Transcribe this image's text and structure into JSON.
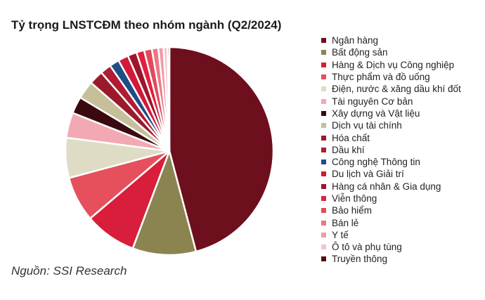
{
  "chart_data": {
    "type": "pie",
    "title": "Tỷ trọng LNSTCĐM theo nhóm ngành (Q2/2024)",
    "source": "Nguồn: SSI Research",
    "legend_position": "right",
    "series": [
      {
        "name": "Ngân hàng",
        "value": 45.6,
        "color": "#6e0f1e"
      },
      {
        "name": "Bất động sản",
        "value": 9.8,
        "color": "#8b8450"
      },
      {
        "name": "Hàng & Dịch vụ Công nghiệp",
        "value": 8.0,
        "color": "#d81e3a"
      },
      {
        "name": "Thực phẩm và đồ uống",
        "value": 7.0,
        "color": "#e6505d"
      },
      {
        "name": "Điện, nước & xăng dầu khí đốt",
        "value": 6.2,
        "color": "#dfdcc6"
      },
      {
        "name": "Tài nguyên Cơ bản",
        "value": 3.9,
        "color": "#f2a9b3"
      },
      {
        "name": "Xây dựng và Vật liệu",
        "value": 2.6,
        "color": "#3a0a10"
      },
      {
        "name": "Dịch vụ tài chính",
        "value": 2.8,
        "color": "#c5c09a"
      },
      {
        "name": "Hóa chất",
        "value": 2.2,
        "color": "#9a1a2c"
      },
      {
        "name": "Dầu khí",
        "value": 1.7,
        "color": "#b01c33"
      },
      {
        "name": "Công nghệ Thông tin",
        "value": 1.5,
        "color": "#1f4e86"
      },
      {
        "name": "Du lịch và Giải trí",
        "value": 1.6,
        "color": "#d2193a"
      },
      {
        "name": "Hàng cá nhân & Gia dụng",
        "value": 1.4,
        "color": "#a0142a"
      },
      {
        "name": "Viễn thông",
        "value": 1.2,
        "color": "#e0203f"
      },
      {
        "name": "Bảo hiểm",
        "value": 1.2,
        "color": "#e24a5a"
      },
      {
        "name": "Bán lẻ",
        "value": 1.0,
        "color": "#ec7785"
      },
      {
        "name": "Y tế",
        "value": 0.8,
        "color": "#f29aa5"
      },
      {
        "name": "Ô tô và phụ tùng",
        "value": 0.6,
        "color": "#f6c3ca"
      },
      {
        "name": "Truyền thông",
        "value": 0.3,
        "color": "#5a0a16"
      }
    ]
  }
}
